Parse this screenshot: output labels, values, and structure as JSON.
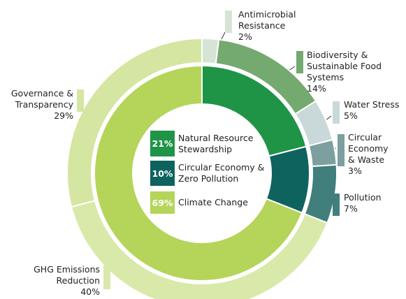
{
  "chart_data": {
    "type": "sunburst",
    "inner": {
      "categories": [
        "Natural Resource Stewardship",
        "Circular Economy & Zero Pollution",
        "Climate Change"
      ],
      "values": [
        21,
        10,
        69
      ],
      "value_labels": [
        "21%",
        "10%",
        "69%"
      ],
      "colors": [
        "#1f9447",
        "#0e635f",
        "#b5d45a"
      ]
    },
    "outer": {
      "categories": [
        "Antimicrobial Resistance",
        "Biodiversity & Sustainable Food Systems",
        "Water Stress",
        "Circular Economy & Waste",
        "Pollution",
        "GHG Emissions Reduction",
        "Governance & Transparency"
      ],
      "values": [
        2,
        14,
        5,
        3,
        7,
        40,
        29
      ],
      "value_labels": [
        "2%",
        "14%",
        "5%",
        "3%",
        "7%",
        "40%",
        "29%"
      ],
      "colors": [
        "#d6e4d6",
        "#74a96f",
        "#c9d9d9",
        "#7d9f9f",
        "#407f7c",
        "#d9e9aa",
        "#d4e6a2"
      ]
    }
  }
}
